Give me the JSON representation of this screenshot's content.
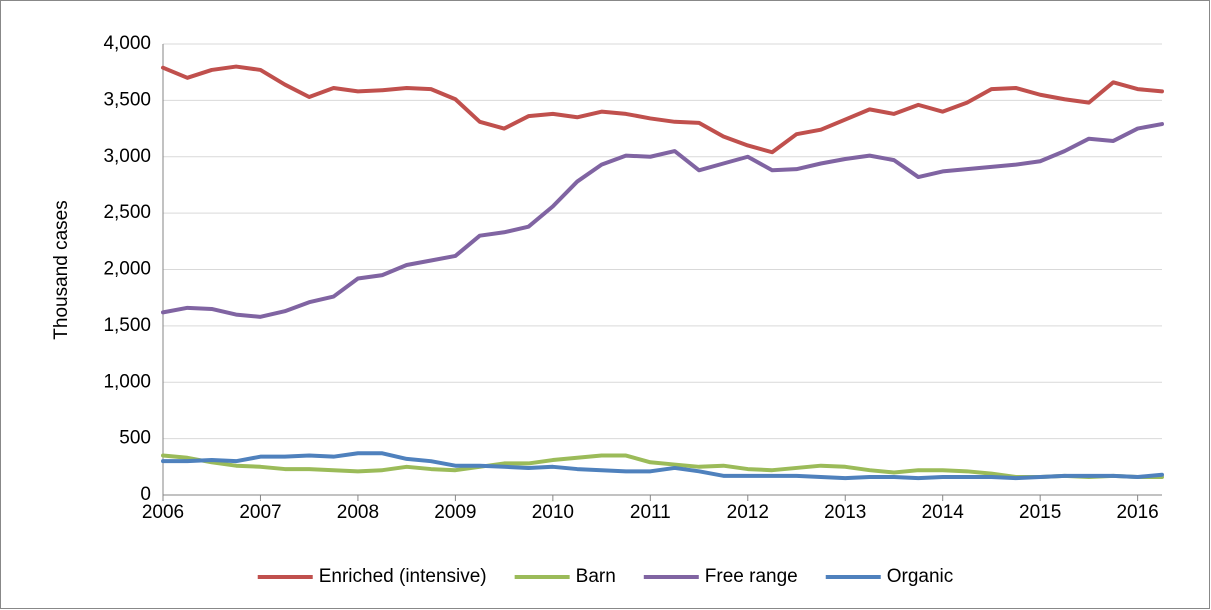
{
  "chart_data": {
    "type": "line",
    "y_label": "Thousand cases",
    "categories": [
      "2006",
      null,
      null,
      null,
      "2007",
      null,
      null,
      null,
      "2008",
      null,
      null,
      null,
      "2009",
      null,
      null,
      null,
      "2010",
      null,
      null,
      null,
      "2011",
      null,
      null,
      null,
      "2012",
      null,
      null,
      null,
      "2013",
      null,
      null,
      null,
      "2014",
      null,
      null,
      null,
      "2015",
      null,
      null,
      null,
      "2016",
      null
    ],
    "series": [
      {
        "name": "Enriched (intensive)",
        "color": "#c0504d",
        "values": [
          3790,
          3700,
          3770,
          3800,
          3770,
          3640,
          3530,
          3610,
          3580,
          3590,
          3610,
          3600,
          3510,
          3310,
          3250,
          3360,
          3380,
          3350,
          3400,
          3380,
          3340,
          3310,
          3300,
          3180,
          3100,
          3040,
          3200,
          3240,
          3330,
          3420,
          3380,
          3460,
          3400,
          3480,
          3600,
          3610,
          3550,
          3510,
          3480,
          3660,
          3600,
          3580
        ]
      },
      {
        "name": "Barn",
        "color": "#9bbb59",
        "values": [
          350,
          330,
          290,
          260,
          250,
          230,
          230,
          220,
          210,
          220,
          250,
          230,
          220,
          250,
          280,
          280,
          310,
          330,
          350,
          350,
          290,
          270,
          250,
          260,
          230,
          220,
          240,
          260,
          250,
          220,
          200,
          220,
          220,
          210,
          190,
          160,
          160,
          170,
          160,
          170,
          160,
          160
        ]
      },
      {
        "name": "Free range",
        "color": "#8064a2",
        "values": [
          1620,
          1660,
          1650,
          1600,
          1580,
          1630,
          1710,
          1760,
          1920,
          1950,
          2040,
          2080,
          2120,
          2300,
          2330,
          2380,
          2560,
          2780,
          2930,
          3010,
          3000,
          3050,
          2880,
          2940,
          3000,
          2880,
          2890,
          2940,
          2980,
          3010,
          2970,
          2820,
          2870,
          2890,
          2910,
          2930,
          2960,
          3050,
          3160,
          3140,
          3250,
          3290
        ]
      },
      {
        "name": "Organic",
        "color": "#4f81bd",
        "values": [
          300,
          300,
          310,
          300,
          340,
          340,
          350,
          340,
          370,
          370,
          320,
          300,
          260,
          260,
          250,
          240,
          250,
          230,
          220,
          210,
          210,
          240,
          210,
          170,
          170,
          170,
          170,
          160,
          150,
          160,
          160,
          150,
          160,
          160,
          160,
          150,
          160,
          170,
          170,
          170,
          160,
          180
        ]
      }
    ],
    "ylim": [
      0,
      4000
    ],
    "yticks": [
      0,
      500,
      {
        "value": 1000,
        "label": "1,000"
      },
      {
        "value": 1500,
        "label": "1,500"
      },
      {
        "value": 2000,
        "label": "2,000"
      },
      {
        "value": 2500,
        "label": "2,500"
      },
      {
        "value": 3000,
        "label": "3,000"
      },
      {
        "value": 3500,
        "label": "3,500"
      },
      {
        "value": 4000,
        "label": "4,000"
      }
    ],
    "grid": true,
    "legend": "bottom"
  }
}
